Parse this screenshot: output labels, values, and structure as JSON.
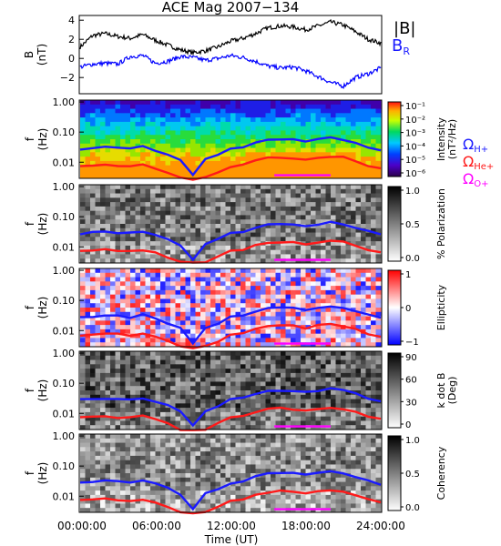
{
  "chart_data": [
    {
      "type": "line",
      "title": "ACE Mag 2007−134",
      "ylabel": "B",
      "yunit": "(nT)",
      "ylim": [
        -3.6,
        4.4
      ],
      "yticks": [
        "4",
        "2",
        "0",
        "−2"
      ],
      "series": [
        {
          "name": "|B|",
          "color": "#000000",
          "x": [
            0,
            1,
            2,
            3,
            4,
            5,
            6,
            7,
            8,
            9,
            10,
            11,
            12,
            13,
            14,
            15,
            16,
            17,
            18,
            19,
            20,
            21,
            22,
            23,
            24
          ],
          "values": [
            1.2,
            2.4,
            2.6,
            2.3,
            2.1,
            2.5,
            1.9,
            1.4,
            0.9,
            0.6,
            0.8,
            1.2,
            1.8,
            2.1,
            2.6,
            3.2,
            3.4,
            3.3,
            3.0,
            3.4,
            3.8,
            3.5,
            2.8,
            2.0,
            1.6
          ]
        },
        {
          "name": "B",
          "sub": "R",
          "color": "#0000ff",
          "x": [
            0,
            1,
            2,
            3,
            4,
            5,
            6,
            7,
            8,
            9,
            10,
            11,
            12,
            13,
            14,
            15,
            16,
            17,
            18,
            19,
            20,
            21,
            22,
            23,
            24
          ],
          "values": [
            -0.9,
            -0.6,
            -0.5,
            -0.6,
            0.2,
            0.3,
            -0.5,
            -0.3,
            0.2,
            0.1,
            -0.2,
            0.0,
            0.3,
            0.1,
            -0.3,
            -0.8,
            -1.0,
            -0.9,
            -1.3,
            -1.9,
            -2.5,
            -2.9,
            -2.0,
            -1.6,
            -1.0
          ]
        }
      ]
    },
    {
      "type": "heatmap",
      "panel": "intensity",
      "ylabel": "f",
      "yunit": "(Hz)",
      "yticks": [
        "1.00",
        "0.10",
        "0.01"
      ],
      "colorbar": {
        "label": "Intensity",
        "unit": "(nT²/Hz)",
        "ticks": [
          "10⁻¹",
          "10⁻²",
          "10⁻³",
          "10⁻⁴",
          "10⁻⁵",
          "10⁻⁶"
        ],
        "palette": "rainbow"
      }
    },
    {
      "type": "heatmap",
      "panel": "polarization",
      "ylabel": "f",
      "yunit": "(Hz)",
      "yticks": [
        "1.00",
        "0.10",
        "0.01"
      ],
      "colorbar": {
        "label": "% Polarization",
        "ticks": [
          "1.0",
          "0.5",
          "0.0"
        ],
        "palette": "gray"
      }
    },
    {
      "type": "heatmap",
      "panel": "ellipticity",
      "ylabel": "f",
      "yunit": "(Hz)",
      "yticks": [
        "1.00",
        "0.10",
        "0.01"
      ],
      "colorbar": {
        "label": "Ellipticity",
        "ticks": [
          "1",
          "0",
          "−1"
        ],
        "palette": "bluewhitered"
      }
    },
    {
      "type": "heatmap",
      "panel": "kdotb",
      "ylabel": "f",
      "yunit": "(Hz)",
      "yticks": [
        "1.00",
        "0.10",
        "0.01"
      ],
      "colorbar": {
        "label": "k dot B",
        "unit": "(Deg)",
        "ticks": [
          "90",
          "60",
          "30",
          "0"
        ],
        "palette": "gray"
      }
    },
    {
      "type": "heatmap",
      "panel": "coherency",
      "ylabel": "f",
      "yunit": "(Hz)",
      "yticks": [
        "1.00",
        "0.10",
        "0.01"
      ],
      "colorbar": {
        "label": "Coherency",
        "ticks": [
          "1.0",
          "0.5",
          "0.0"
        ],
        "palette": "gray"
      }
    }
  ],
  "gyro_legend": [
    {
      "symbol": "Ω",
      "sub": "H+",
      "color": "#1a1aff"
    },
    {
      "symbol": "Ω",
      "sub": "He+",
      "color": "#ff1a1a"
    },
    {
      "symbol": "Ω",
      "sub": "O+",
      "color": "#ff00ff"
    }
  ],
  "gyro_lines": {
    "x": [
      0,
      1,
      2,
      3,
      4,
      5,
      6,
      7,
      8,
      9,
      10,
      11,
      12,
      13,
      14,
      15,
      16,
      17,
      18,
      19,
      20,
      21,
      22,
      23,
      24
    ],
    "H+": [
      0.028,
      0.03,
      0.032,
      0.03,
      0.028,
      0.033,
      0.025,
      0.018,
      0.012,
      0.004,
      0.012,
      0.018,
      0.028,
      0.033,
      0.045,
      0.055,
      0.06,
      0.056,
      0.05,
      0.058,
      0.065,
      0.058,
      0.045,
      0.032,
      0.025
    ],
    "He+": [
      0.007,
      0.0075,
      0.008,
      0.0075,
      0.007,
      0.008,
      0.0062,
      0.0045,
      0.003,
      0.0028,
      0.003,
      0.0045,
      0.007,
      0.008,
      0.0112,
      0.0138,
      0.015,
      0.014,
      0.0125,
      0.0145,
      0.0162,
      0.0145,
      0.0112,
      0.008,
      0.0062
    ],
    "O+": {
      "x_range": [
        15.5,
        20
      ],
      "value": 0.0037
    }
  },
  "xaxis": {
    "ticks": [
      "00:00:00",
      "06:00:00",
      "12:00:00",
      "18:00:00",
      "24:00:00"
    ],
    "label": "Time (UT)"
  }
}
